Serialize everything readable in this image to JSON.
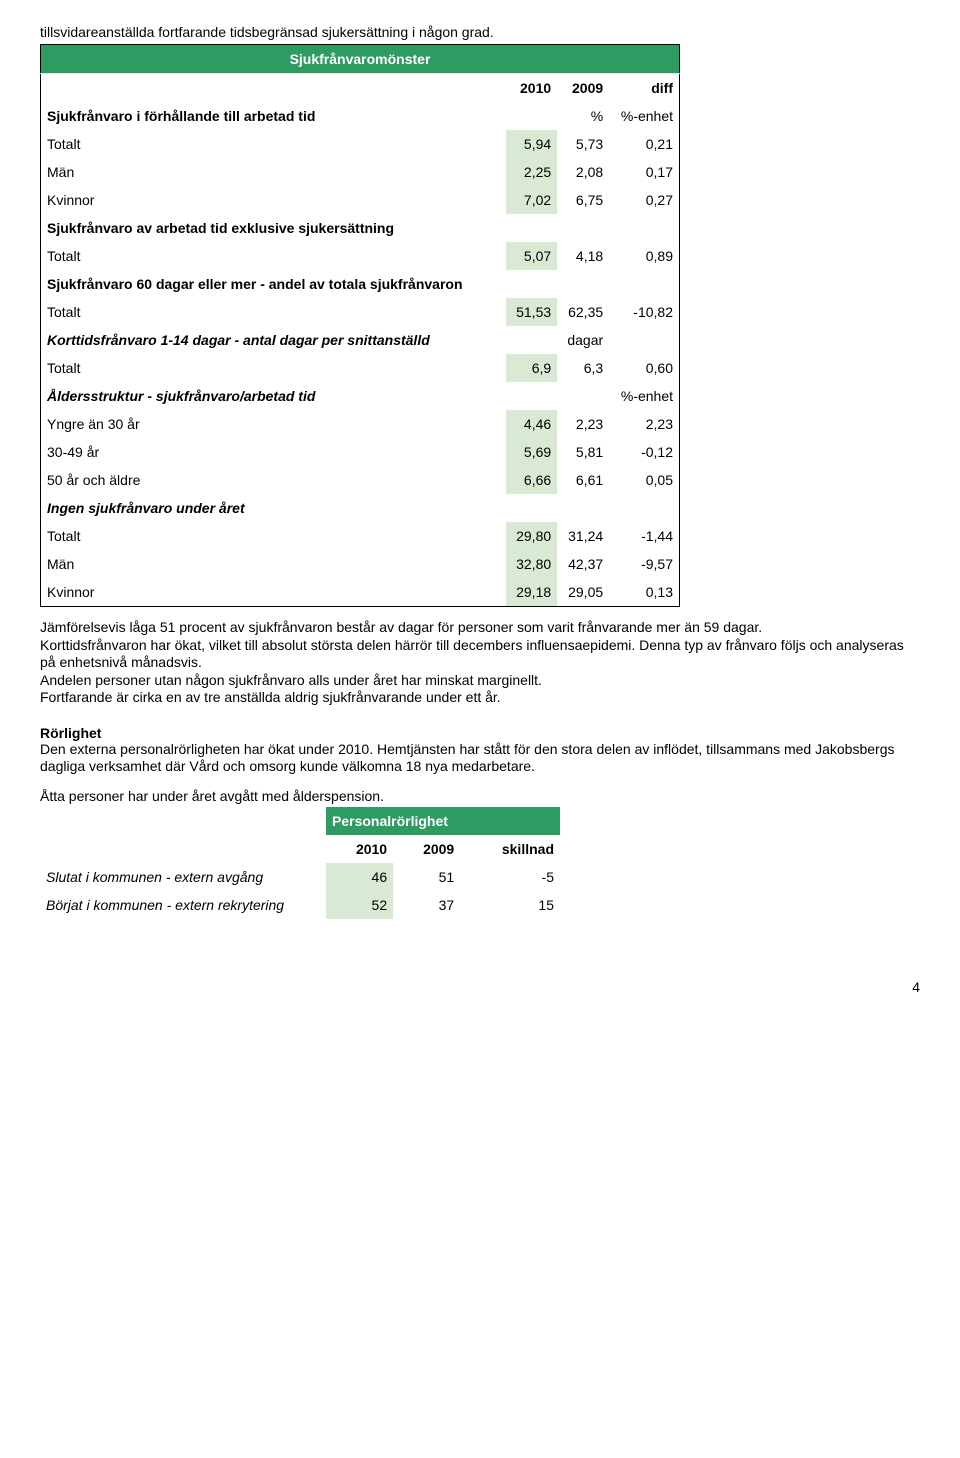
{
  "intro": "tillsvidareanställda fortfarande tidsbegränsad sjukersättning i någon grad.",
  "table1": {
    "title": "Sjukfrånvaromönster",
    "col_headers": [
      "2010",
      "2009",
      "diff"
    ],
    "rows": [
      {
        "label": "Sjukfrånvaro i förhållande till arbetad tid",
        "v1": "",
        "v2": "%",
        "v3": "%-enhet",
        "is_subhdr": true
      },
      {
        "label": "Totalt",
        "v1": "5,94",
        "v2": "5,73",
        "v3": "0,21",
        "shade_v1": true
      },
      {
        "label": "Män",
        "v1": "2,25",
        "v2": "2,08",
        "v3": "0,17",
        "shade_v1": true
      },
      {
        "label": "Kvinnor",
        "v1": "7,02",
        "v2": "6,75",
        "v3": "0,27",
        "shade_v1": true
      },
      {
        "label": "Sjukfrånvaro av arbetad tid exklusive sjukersättning",
        "is_subhdr": true
      },
      {
        "label": "Totalt",
        "v1": "5,07",
        "v2": "4,18",
        "v3": "0,89",
        "shade_v1": true
      },
      {
        "label": "Sjukfrånvaro 60 dagar eller mer - andel av totala sjukfrånvaron",
        "is_subhdr": true
      },
      {
        "label": "Totalt",
        "v1": "51,53",
        "v2": "62,35",
        "v3": "-10,82",
        "shade_v1": true
      },
      {
        "label": "Korttidsfrånvaro 1-14 dagar - antal dagar per snittanställd",
        "v2": "dagar",
        "is_italic": true
      },
      {
        "label": "Totalt",
        "v1": "6,9",
        "v2": "6,3",
        "v3": "0,60",
        "shade_v1": true
      },
      {
        "label": "Åldersstruktur - sjukfrånvaro/arbetad tid",
        "v3": "%-enhet",
        "is_italic": true
      },
      {
        "label": "Yngre än 30 år",
        "v1": "4,46",
        "v2": "2,23",
        "v3": "2,23",
        "shade_v1": true
      },
      {
        "label": "30-49 år",
        "v1": "5,69",
        "v2": "5,81",
        "v3": "-0,12",
        "shade_v1": true
      },
      {
        "label": "50 år och äldre",
        "v1": "6,66",
        "v2": "6,61",
        "v3": "0,05",
        "shade_v1": true
      },
      {
        "label": "Ingen sjukfrånvaro under året",
        "is_italic": true
      },
      {
        "label": "Totalt",
        "v1": "29,80",
        "v2": "31,24",
        "v3": "-1,44",
        "shade_v1": true
      },
      {
        "label": "Män",
        "v1": "32,80",
        "v2": "42,37",
        "v3": "-9,57",
        "shade_v1": true
      },
      {
        "label": "Kvinnor",
        "v1": "29,18",
        "v2": "29,05",
        "v3": "0,13",
        "shade_v1": true
      }
    ]
  },
  "para1_lines": [
    "Jämförelsevis låga 51 procent av sjukfrånvaron består av dagar för personer som varit frånvarande mer än 59 dagar.",
    "Korttidsfrånvaron har ökat, vilket till absolut största delen härrör till decembers influensaepidemi. Denna typ av frånvaro följs och analyseras på enhetsnivå månadsvis.",
    "Andelen personer utan någon sjukfrånvaro alls under året har minskat marginellt.",
    "Fortfarande är cirka en av tre anställda aldrig sjukfrånvarande under ett år."
  ],
  "rorlighet": {
    "title": "Rörlighet",
    "body": "Den externa personalrörligheten har ökat under 2010. Hemtjänsten har stått för den stora delen av inflödet, tillsammans med Jakobsbergs dagliga verksamhet där Vård och omsorg kunde välkomna 18 nya medarbetare."
  },
  "para2": "Åtta personer har under året avgått med ålderspension.",
  "table2": {
    "title": "Personalrörlighet",
    "col_headers": [
      "2010",
      "2009",
      "skillnad"
    ],
    "rows": [
      {
        "label": "Slutat i kommunen - extern avgång",
        "v1": "46",
        "v2": "51",
        "v3": "-5",
        "italic_label": true
      },
      {
        "label": "Börjat i kommunen - extern rekrytering",
        "v1": "52",
        "v2": "37",
        "v3": "15",
        "italic_label": true
      }
    ]
  },
  "page_number": "4",
  "colors": {
    "header_bg": "#2e9b63",
    "shade_bg": "#d9e9d3"
  }
}
